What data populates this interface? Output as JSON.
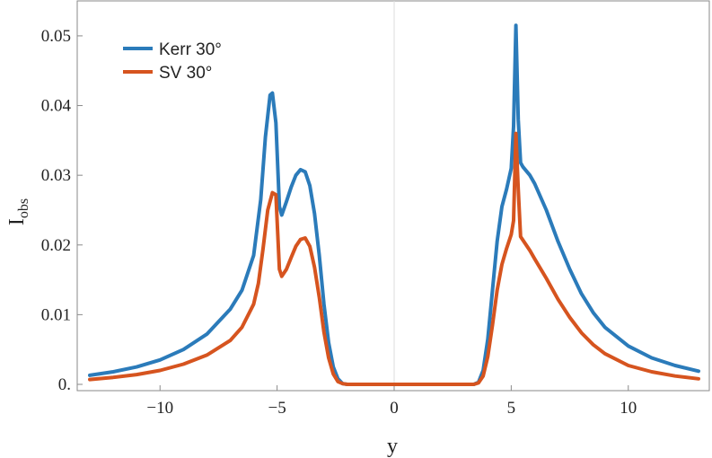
{
  "chart_data": {
    "type": "line",
    "title": "",
    "xlabel": "y",
    "ylabel_main": "I",
    "ylabel_sub": "obs",
    "xlim": [
      -13,
      13
    ],
    "ylim": [
      0,
      0.0545
    ],
    "xticks": [
      -10,
      -5,
      0,
      5,
      10
    ],
    "xtick_labels": [
      "−10",
      "−5",
      "0",
      "5",
      "10"
    ],
    "yticks": [
      0,
      0.01,
      0.02,
      0.03,
      0.04,
      0.05
    ],
    "ytick_labels": [
      "0.",
      "0.01",
      "0.02",
      "0.03",
      "0.04",
      "0.05"
    ],
    "grid": false,
    "legend_position": "top-left",
    "series": [
      {
        "name": "Kerr 30°",
        "color": "#2b7bba",
        "x": [
          -13,
          -12,
          -11,
          -10,
          -9,
          -8,
          -7,
          -6.5,
          -6,
          -5.7,
          -5.5,
          -5.3,
          -5.2,
          -5.05,
          -4.9,
          -4.8,
          -4.6,
          -4.4,
          -4.2,
          -4.0,
          -3.8,
          -3.6,
          -3.4,
          -3.2,
          -3.0,
          -2.8,
          -2.6,
          -2.4,
          -2.2,
          -2.0,
          -1.8,
          0,
          3.4,
          3.6,
          3.8,
          4.0,
          4.2,
          4.4,
          4.6,
          4.8,
          5.0,
          5.1,
          5.2,
          5.3,
          5.4,
          5.5,
          5.8,
          6.0,
          6.5,
          7.0,
          7.5,
          8.0,
          8.5,
          9.0,
          10.0,
          11.0,
          12.0,
          13.0
        ],
        "y": [
          0.0013,
          0.0018,
          0.0025,
          0.0035,
          0.005,
          0.0072,
          0.0108,
          0.0135,
          0.0185,
          0.0265,
          0.0355,
          0.0415,
          0.0418,
          0.0375,
          0.0255,
          0.0243,
          0.0262,
          0.0283,
          0.03,
          0.0308,
          0.0305,
          0.0285,
          0.0245,
          0.0185,
          0.0115,
          0.006,
          0.0025,
          0.0008,
          0.0001,
          0.0,
          0.0,
          0.0,
          0.0,
          0.0003,
          0.002,
          0.0065,
          0.0135,
          0.0205,
          0.0255,
          0.028,
          0.031,
          0.037,
          0.0515,
          0.038,
          0.0318,
          0.0312,
          0.03,
          0.0288,
          0.025,
          0.0205,
          0.0165,
          0.013,
          0.0103,
          0.0082,
          0.0055,
          0.0038,
          0.0027,
          0.0019
        ]
      },
      {
        "name": "SV 30°",
        "color": "#d6541f",
        "x": [
          -13,
          -12,
          -11,
          -10,
          -9,
          -8,
          -7,
          -6.5,
          -6,
          -5.8,
          -5.6,
          -5.4,
          -5.2,
          -5.05,
          -4.9,
          -4.8,
          -4.6,
          -4.4,
          -4.2,
          -4.0,
          -3.8,
          -3.6,
          -3.4,
          -3.2,
          -3.0,
          -2.8,
          -2.6,
          -2.4,
          -2.2,
          -2.0,
          -1.8,
          0,
          3.4,
          3.6,
          3.8,
          4.0,
          4.2,
          4.4,
          4.6,
          4.8,
          5.0,
          5.1,
          5.2,
          5.3,
          5.4,
          5.6,
          5.8,
          6.0,
          6.5,
          7.0,
          7.5,
          8.0,
          8.5,
          9.0,
          10.0,
          11.0,
          12.0,
          13.0
        ],
        "y": [
          0.0007,
          0.001,
          0.0014,
          0.002,
          0.0029,
          0.0042,
          0.0063,
          0.0082,
          0.0115,
          0.0145,
          0.0195,
          0.025,
          0.0275,
          0.0272,
          0.0165,
          0.0155,
          0.0165,
          0.0182,
          0.0198,
          0.0208,
          0.021,
          0.0198,
          0.0168,
          0.0125,
          0.0075,
          0.0038,
          0.0015,
          0.0004,
          0.0001,
          0.0,
          0.0,
          0.0,
          0.0,
          0.0002,
          0.0012,
          0.004,
          0.0085,
          0.0135,
          0.0172,
          0.0195,
          0.0215,
          0.0235,
          0.036,
          0.028,
          0.0212,
          0.0202,
          0.0192,
          0.018,
          0.0152,
          0.0122,
          0.0096,
          0.0074,
          0.0057,
          0.0044,
          0.0027,
          0.0018,
          0.0012,
          0.0008
        ]
      }
    ]
  }
}
